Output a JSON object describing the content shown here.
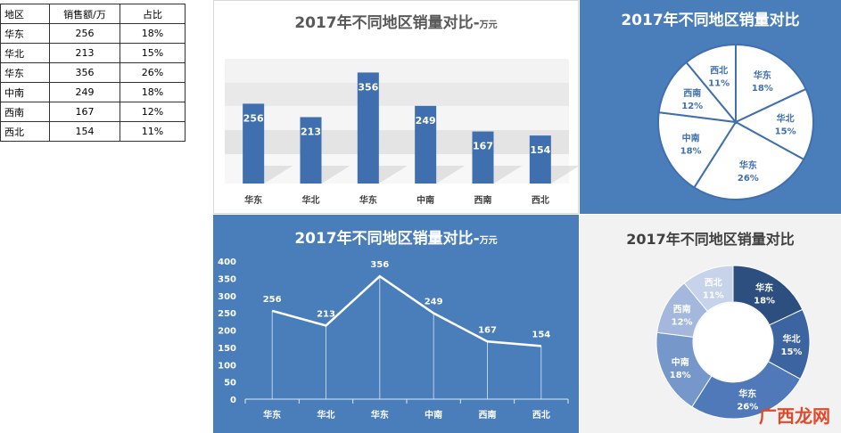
{
  "table": {
    "headers": [
      "地区",
      "销售额/万",
      "占比"
    ],
    "rows": [
      [
        "华东",
        "256",
        "18%"
      ],
      [
        "华北",
        "213",
        "15%"
      ],
      [
        "华东",
        "356",
        "26%"
      ],
      [
        "中南",
        "249",
        "18%"
      ],
      [
        "西南",
        "167",
        "12%"
      ],
      [
        "西北",
        "154",
        "11%"
      ]
    ]
  },
  "titles": {
    "bar": "2017年不同地区销量对比-",
    "bar_unit": "万元",
    "pie": "2017年不同地区销量对比",
    "line": "2017年不同地区销量对比-",
    "line_unit": "万元",
    "donut": "2017年不同地区销量对比"
  },
  "watermark": "广西龙网",
  "colors": {
    "bar_fill": "#3f6fae",
    "panel_blue": "#4a7ebb",
    "pie_text": "#3f6fae",
    "donut": [
      "#2c4f80",
      "#3b64a0",
      "#4f79b8",
      "#7697c9",
      "#a3b8dc",
      "#c6d3ea"
    ]
  },
  "chart_data": [
    {
      "type": "bar",
      "title": "2017年不同地区销量对比-万元",
      "categories": [
        "华东",
        "华北",
        "华东",
        "中南",
        "西南",
        "西北"
      ],
      "values": [
        256,
        213,
        356,
        249,
        167,
        154
      ],
      "ylim": [
        0,
        400
      ],
      "grid": false
    },
    {
      "type": "pie",
      "title": "2017年不同地区销量对比",
      "categories": [
        "华东",
        "华北",
        "华东",
        "中南",
        "西南",
        "西北"
      ],
      "values": [
        18,
        15,
        26,
        18,
        12,
        11
      ],
      "labels": [
        "18%",
        "15%",
        "26%",
        "18%",
        "12%",
        "11%"
      ]
    },
    {
      "type": "line",
      "title": "2017年不同地区销量对比-万元",
      "categories": [
        "华东",
        "华北",
        "华东",
        "中南",
        "西南",
        "西北"
      ],
      "values": [
        256,
        213,
        356,
        249,
        167,
        154
      ],
      "ylim": [
        0,
        400
      ],
      "yticks": [
        "0",
        "50",
        "100",
        "150",
        "200",
        "250",
        "300",
        "350",
        "400"
      ]
    },
    {
      "type": "pie",
      "title": "2017年不同地区销量对比",
      "categories": [
        "华东",
        "华北",
        "华东",
        "中南",
        "西南",
        "西北"
      ],
      "values": [
        18,
        15,
        26,
        18,
        12,
        11
      ],
      "labels": [
        "18%",
        "15%",
        "26%",
        "18%",
        "12%",
        "11%"
      ]
    }
  ]
}
